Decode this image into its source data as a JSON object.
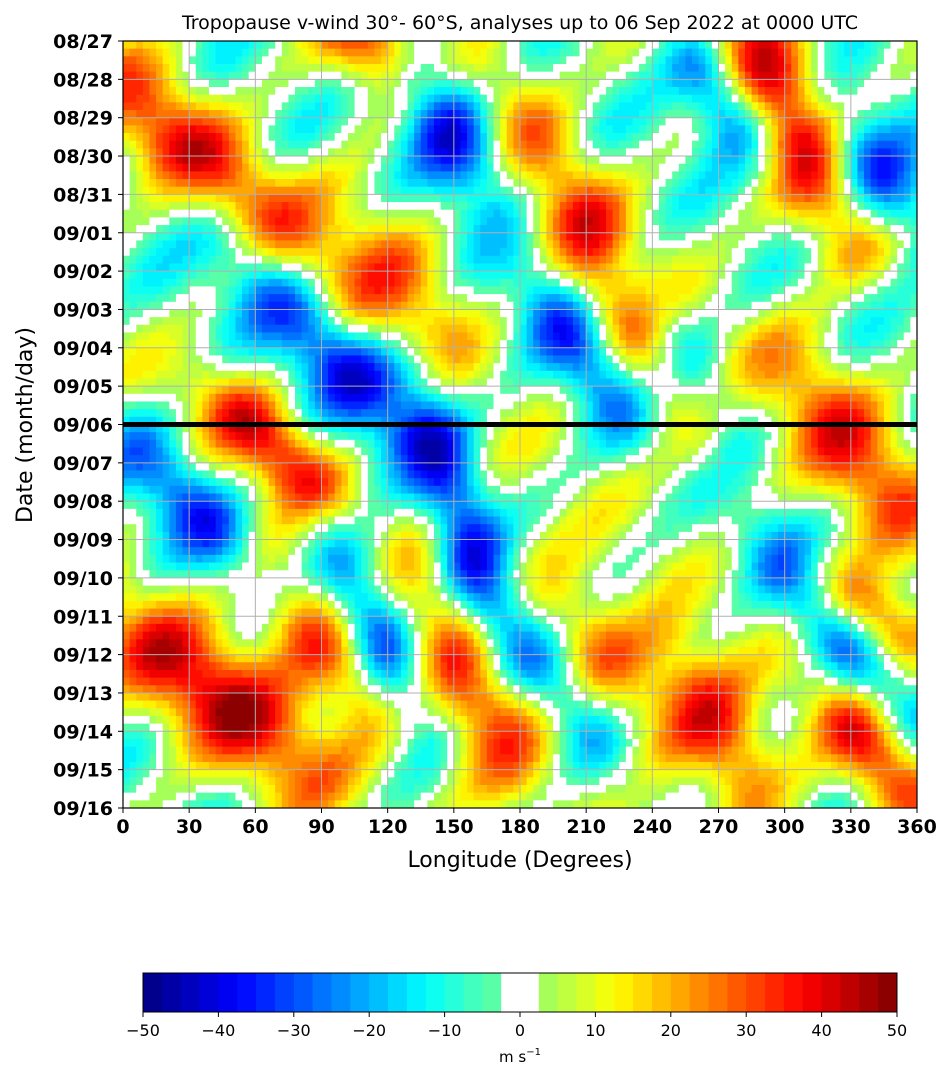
{
  "chart_data": {
    "type": "heatmap",
    "title": "Tropopause v-wind 30°- 60°S, analyses up to 06 Sep 2022 at 0000 UTC",
    "xlabel": "Longitude (Degrees)",
    "ylabel": "Date (month/day)",
    "xlim": [
      0,
      360
    ],
    "x_ticks": [
      0,
      30,
      60,
      90,
      120,
      150,
      180,
      210,
      240,
      270,
      300,
      330,
      360
    ],
    "x_tick_labels": [
      "0",
      "30",
      "60",
      "90",
      "120",
      "150",
      "180",
      "210",
      "240",
      "270",
      "300",
      "330",
      "360"
    ],
    "y_tick_labels": [
      "08/27",
      "08/28",
      "08/29",
      "08/30",
      "08/31",
      "09/01",
      "09/02",
      "09/03",
      "09/04",
      "09/05",
      "09/06",
      "09/07",
      "09/08",
      "09/09",
      "09/10",
      "09/11",
      "09/12",
      "09/13",
      "09/14",
      "09/15",
      "09/16"
    ],
    "y_order": "top-to-bottom",
    "analysis_line_date": "09/06",
    "grid": true,
    "colorbar": {
      "min": -50,
      "max": 50,
      "step": 2.5,
      "ticks": [
        -50,
        -40,
        -30,
        -20,
        -10,
        0,
        10,
        20,
        30,
        40,
        50
      ],
      "tick_labels": [
        "−50",
        "−40",
        "−30",
        "−20",
        "−10",
        "0",
        "10",
        "20",
        "30",
        "40",
        "50"
      ],
      "unit_label": "m s",
      "unit_exponent": "−1",
      "zero_band_color": "#ffffff",
      "orientation": "horizontal",
      "placement": "bottom"
    },
    "colormap": "jet",
    "features": [
      {
        "sign": "positive",
        "peak": 42,
        "lon_start": 0,
        "date_start": "08/28",
        "lon_end": 95,
        "date_end": "09/03",
        "width_deg": 16
      },
      {
        "sign": "negative",
        "peak": -44,
        "lon_start": 35,
        "date_start": "08/31",
        "lon_end": 125,
        "date_end": "09/06",
        "width_deg": 14
      },
      {
        "sign": "positive",
        "peak": 38,
        "lon_start": 40,
        "date_start": "09/05",
        "lon_end": 95,
        "date_end": "09/08",
        "width_deg": 12
      },
      {
        "sign": "positive",
        "peak": 40,
        "lon_start": 0,
        "date_start": "09/11",
        "lon_end": 85,
        "date_end": "09/15",
        "width_deg": 18
      },
      {
        "sign": "negative",
        "peak": -30,
        "lon_start": 0,
        "date_start": "09/06",
        "lon_end": 60,
        "date_end": "09/10",
        "width_deg": 12
      },
      {
        "sign": "positive",
        "peak": 36,
        "lon_start": 65,
        "date_start": "09/10",
        "lon_end": 125,
        "date_end": "09/14",
        "width_deg": 14
      },
      {
        "sign": "negative",
        "peak": -38,
        "lon_start": 95,
        "date_start": "09/09",
        "lon_end": 135,
        "date_end": "09/14",
        "width_deg": 12
      },
      {
        "sign": "positive",
        "peak": 42,
        "lon_start": 100,
        "date_start": "08/26",
        "lon_end": 130,
        "date_end": "08/28",
        "width_deg": 14
      },
      {
        "sign": "negative",
        "peak": -44,
        "lon_start": 125,
        "date_start": "08/27",
        "lon_end": 165,
        "date_end": "08/31",
        "width_deg": 14
      },
      {
        "sign": "positive",
        "peak": 24,
        "lon_start": 100,
        "date_start": "08/31",
        "lon_end": 150,
        "date_end": "09/04",
        "width_deg": 16
      },
      {
        "sign": "negative",
        "peak": -36,
        "lon_start": 135,
        "date_start": "09/05",
        "lon_end": 170,
        "date_end": "09/12",
        "width_deg": 12
      },
      {
        "sign": "positive",
        "peak": 34,
        "lon_start": 140,
        "date_start": "09/09",
        "lon_end": 180,
        "date_end": "09/16",
        "width_deg": 18
      },
      {
        "sign": "negative",
        "peak": -30,
        "lon_start": 185,
        "date_start": "09/02",
        "lon_end": 230,
        "date_end": "09/06",
        "width_deg": 12
      },
      {
        "sign": "positive",
        "peak": 40,
        "lon_start": 210,
        "date_start": "09/01",
        "lon_end": 265,
        "date_end": "09/06",
        "width_deg": 16
      },
      {
        "sign": "negative",
        "peak": -38,
        "lon_start": 230,
        "date_start": "09/02",
        "lon_end": 275,
        "date_end": "09/06",
        "width_deg": 12
      },
      {
        "sign": "negative",
        "peak": -36,
        "lon_start": 160,
        "date_start": "09/10",
        "lon_end": 225,
        "date_end": "09/15",
        "width_deg": 14
      },
      {
        "sign": "positive",
        "peak": 34,
        "lon_start": 185,
        "date_start": "09/10",
        "lon_end": 240,
        "date_end": "09/14",
        "width_deg": 16
      },
      {
        "sign": "positive",
        "peak": 38,
        "lon_start": 250,
        "date_start": "09/12",
        "lon_end": 290,
        "date_end": "09/16",
        "width_deg": 14
      },
      {
        "sign": "negative",
        "peak": -40,
        "lon_start": 255,
        "date_start": "08/27",
        "lon_end": 290,
        "date_end": "08/30",
        "width_deg": 12
      },
      {
        "sign": "positive",
        "peak": 46,
        "lon_start": 275,
        "date_start": "08/26",
        "lon_end": 330,
        "date_end": "09/01",
        "width_deg": 16
      },
      {
        "sign": "negative",
        "peak": -42,
        "lon_start": 320,
        "date_start": "08/29",
        "lon_end": 360,
        "date_end": "09/01",
        "width_deg": 14
      },
      {
        "sign": "positive",
        "peak": 30,
        "lon_start": 300,
        "date_start": "09/04",
        "lon_end": 360,
        "date_end": "09/09",
        "width_deg": 16
      },
      {
        "sign": "negative",
        "peak": -30,
        "lon_start": 290,
        "date_start": "09/09",
        "lon_end": 360,
        "date_end": "09/14",
        "width_deg": 12
      },
      {
        "sign": "positive",
        "peak": 40,
        "lon_start": 320,
        "date_start": "09/10",
        "lon_end": 360,
        "date_end": "09/12",
        "width_deg": 12
      },
      {
        "sign": "positive",
        "peak": 34,
        "lon_start": 320,
        "date_start": "09/13",
        "lon_end": 360,
        "date_end": "09/16",
        "width_deg": 12
      },
      {
        "sign": "positive",
        "peak": 22,
        "lon_start": 160,
        "date_start": "08/27",
        "lon_end": 215,
        "date_end": "09/01",
        "width_deg": 14
      }
    ]
  }
}
